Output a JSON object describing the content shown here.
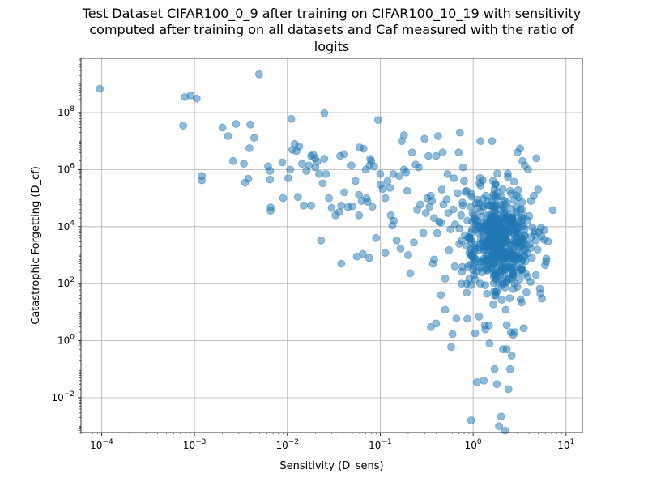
{
  "chart_data": {
    "type": "scatter",
    "title_lines": [
      "Test Dataset CIFAR100_0_9 after training on CIFAR100_10_19 with sensitivity",
      "computed after training on all datasets and Caf measured with the ratio of",
      "logits"
    ],
    "xlabel": "Sensitivity (D_sens)",
    "ylabel": "Catastrophic Forgetting (D_cf)",
    "x_scale": "log",
    "y_scale": "log",
    "xlim": [
      6e-05,
      15
    ],
    "ylim": [
      0.0006,
      8000000000
    ],
    "x_ticks": [
      {
        "base": "10",
        "exp": "−4",
        "value": 0.0001
      },
      {
        "base": "10",
        "exp": "−3",
        "value": 0.001
      },
      {
        "base": "10",
        "exp": "−2",
        "value": 0.01
      },
      {
        "base": "10",
        "exp": "−1",
        "value": 0.1
      },
      {
        "base": "10",
        "exp": "0",
        "value": 1
      },
      {
        "base": "10",
        "exp": "1",
        "value": 10
      }
    ],
    "y_ticks": [
      {
        "base": "10",
        "exp": "−2",
        "value": 0.01
      },
      {
        "base": "10",
        "exp": "0",
        "value": 1
      },
      {
        "base": "10",
        "exp": "2",
        "value": 100
      },
      {
        "base": "10",
        "exp": "4",
        "value": 10000
      },
      {
        "base": "10",
        "exp": "6",
        "value": 1000000
      },
      {
        "base": "10",
        "exp": "8",
        "value": 100000000
      }
    ],
    "grid": true,
    "marker_color": "#1f77b4",
    "marker_alpha": 0.5,
    "series": [
      {
        "points": [
          [
            9.55e-05,
            680000000
          ],
          [
            0.000787,
            350000000
          ],
          [
            0.00091,
            400000000
          ],
          [
            0.001056,
            310000000
          ],
          [
            0.00496,
            2200000000
          ],
          [
            0.000756,
            35000000
          ],
          [
            0.0012,
            600000
          ],
          [
            0.0012,
            420000
          ],
          [
            0.002,
            30000000
          ],
          [
            0.0023,
            15000000
          ],
          [
            0.0026,
            2000000
          ],
          [
            0.0028,
            40000000
          ],
          [
            0.0034,
            1600000
          ],
          [
            0.0035,
            350000
          ],
          [
            0.0038,
            480000
          ],
          [
            0.0039,
            5600000
          ],
          [
            0.004,
            38000000
          ],
          [
            0.0044,
            13000000
          ],
          [
            0.011,
            60000000
          ],
          [
            0.025,
            95000000
          ],
          [
            0.0062,
            1300000
          ],
          [
            0.0065,
            900000
          ],
          [
            0.0065,
            450000
          ],
          [
            0.0066,
            47000
          ],
          [
            0.0066,
            36000
          ],
          [
            0.0088,
            1800000
          ],
          [
            0.009,
            100000
          ],
          [
            0.0102,
            500000
          ],
          [
            0.0107,
            1000000
          ],
          [
            0.0113,
            5000000
          ],
          [
            0.012,
            8000000
          ],
          [
            0.0125,
            4500000
          ],
          [
            0.0134,
            6500000
          ],
          [
            0.013,
            110000
          ],
          [
            0.0144,
            1600000
          ],
          [
            0.015,
            55000
          ],
          [
            0.016,
            900000
          ],
          [
            0.017,
            1400000
          ],
          [
            0.018,
            3000000
          ],
          [
            0.018,
            55000
          ],
          [
            0.019,
            3300000
          ],
          [
            0.0198,
            2500000
          ],
          [
            0.02,
            1200000
          ],
          [
            0.021,
            1900000
          ],
          [
            0.022,
            700000
          ],
          [
            0.023,
            3300
          ],
          [
            0.024,
            330000
          ],
          [
            0.025,
            2400000
          ],
          [
            0.026,
            700000
          ],
          [
            0.028,
            100000
          ],
          [
            0.03,
            45000
          ],
          [
            0.033,
            25000
          ],
          [
            0.036,
            32000
          ],
          [
            0.038,
            55000
          ],
          [
            0.037,
            3000000
          ],
          [
            0.041,
            3500000
          ],
          [
            0.041,
            160000
          ],
          [
            0.038,
            500
          ],
          [
            0.045,
            48000
          ],
          [
            0.049,
            1400000
          ],
          [
            0.05,
            52000
          ],
          [
            0.054,
            400000
          ],
          [
            0.056,
            900
          ],
          [
            0.059,
            25000
          ],
          [
            0.059,
            130000
          ],
          [
            0.06,
            6000000
          ],
          [
            0.063,
            80000
          ],
          [
            0.065,
            1100
          ],
          [
            0.066,
            5400000
          ],
          [
            0.07,
            1000000
          ],
          [
            0.071,
            100000
          ],
          [
            0.073,
            75000
          ],
          [
            0.076,
            800
          ],
          [
            0.077,
            1400000
          ],
          [
            0.078,
            2400000
          ],
          [
            0.08,
            2000000
          ],
          [
            0.082,
            50000
          ],
          [
            0.086,
            1300000
          ],
          [
            0.09,
            4000
          ],
          [
            0.095,
            55000000
          ],
          [
            0.1,
            700000
          ],
          [
            0.101,
            300000
          ],
          [
            0.106,
            210000
          ],
          [
            0.113,
            1200
          ],
          [
            0.113,
            100000
          ],
          [
            0.12,
            400000
          ],
          [
            0.127,
            230000
          ],
          [
            0.13,
            25000
          ],
          [
            0.135,
            11000
          ],
          [
            0.138,
            700000
          ],
          [
            0.14,
            16000
          ],
          [
            0.15,
            3300
          ],
          [
            0.16,
            600000
          ],
          [
            0.165,
            1700
          ],
          [
            0.17,
            10000000
          ],
          [
            0.18,
            16000000
          ],
          [
            0.18,
            1000000
          ],
          [
            0.19,
            800000
          ],
          [
            0.195,
            180000
          ],
          [
            0.2,
            1000
          ],
          [
            0.21,
            230
          ],
          [
            0.22,
            4000000
          ],
          [
            0.23,
            2800
          ],
          [
            0.24,
            1500000
          ],
          [
            0.25,
            39000
          ],
          [
            0.26,
            1200000
          ],
          [
            0.27,
            60000
          ],
          [
            0.29,
            6000
          ],
          [
            0.3,
            12000000
          ],
          [
            0.31,
            30000
          ],
          [
            0.33,
            3000000
          ],
          [
            0.35,
            120000
          ],
          [
            0.37,
            500
          ],
          [
            0.38,
            700
          ],
          [
            0.4,
            3000000
          ],
          [
            0.42,
            15000000
          ],
          [
            0.45,
            40
          ],
          [
            0.47,
            4000000
          ],
          [
            0.5,
            150
          ],
          [
            0.53,
            700000
          ],
          [
            0.55,
            1500
          ],
          [
            0.58,
            0.6
          ],
          [
            0.6,
            1.7
          ],
          [
            0.62,
            500000
          ],
          [
            0.66,
            6
          ],
          [
            0.7,
            4000000
          ],
          [
            0.72,
            20000000
          ],
          [
            0.75,
            100
          ],
          [
            0.78,
            1200000
          ],
          [
            0.8,
            400000
          ],
          [
            0.35,
            3
          ],
          [
            0.4,
            4
          ],
          [
            0.5,
            12
          ],
          [
            0.95,
            0.0016
          ],
          [
            1.05,
            1.8
          ],
          [
            1.1,
            0.035
          ],
          [
            1.2,
            10000000
          ],
          [
            1.3,
            0.04
          ],
          [
            1.35,
            2.5
          ],
          [
            1.5,
            0.8
          ],
          [
            1.6,
            10000000
          ],
          [
            1.7,
            0.1
          ],
          [
            1.8,
            0.03
          ],
          [
            1.9,
            0.001
          ],
          [
            2.0,
            0.0022
          ],
          [
            2.1,
            0.5
          ],
          [
            2.2,
            0.0007
          ],
          [
            2.3,
            0.5
          ],
          [
            2.4,
            0.02
          ],
          [
            2.5,
            0.1
          ],
          [
            2.6,
            0.3
          ],
          [
            2.7,
            1.6
          ],
          [
            2.8,
            2
          ],
          [
            3.0,
            4000000
          ],
          [
            3.2,
            5500000
          ],
          [
            3.4,
            2000000
          ],
          [
            3.6,
            1400000
          ],
          [
            3.9,
            1000000
          ],
          [
            4.2,
            80000
          ],
          [
            4.5,
            120000
          ],
          [
            4.8,
            2500000
          ],
          [
            5.0,
            200000
          ],
          [
            5.3,
            45
          ],
          [
            5.5,
            30
          ],
          [
            5.8,
            3500
          ],
          [
            6.1,
            600
          ],
          [
            6.4,
            3000
          ],
          [
            7.2,
            38000
          ],
          [
            3.3,
            2000
          ],
          [
            0.32,
            100000
          ],
          [
            0.34,
            50000
          ],
          [
            0.36,
            80000
          ],
          [
            0.38,
            20000
          ],
          [
            0.41,
            6000
          ],
          [
            0.43,
            15000
          ],
          [
            0.46,
            200000
          ],
          [
            0.48,
            60000
          ],
          [
            0.52,
            90000
          ],
          [
            0.54,
            30000
          ],
          [
            0.57,
            8000
          ],
          [
            0.61,
            40000
          ],
          [
            0.64,
            12000
          ],
          [
            0.68,
            150000
          ],
          [
            0.71,
            2500
          ],
          [
            0.74,
            25000
          ],
          [
            0.77,
            70000
          ],
          [
            0.81,
            5000
          ],
          [
            0.85,
            180000
          ],
          [
            0.88,
            400
          ],
          [
            0.91,
            1200
          ],
          [
            0.94,
            50000
          ],
          [
            0.97,
            8000
          ],
          [
            1.0,
            300
          ]
        ],
        "cluster": {
          "x_center": 1.9,
          "x_spread_dex": 0.18,
          "y_center": 3000,
          "y_spread_dex": 0.95,
          "count": 500
        }
      }
    ]
  }
}
